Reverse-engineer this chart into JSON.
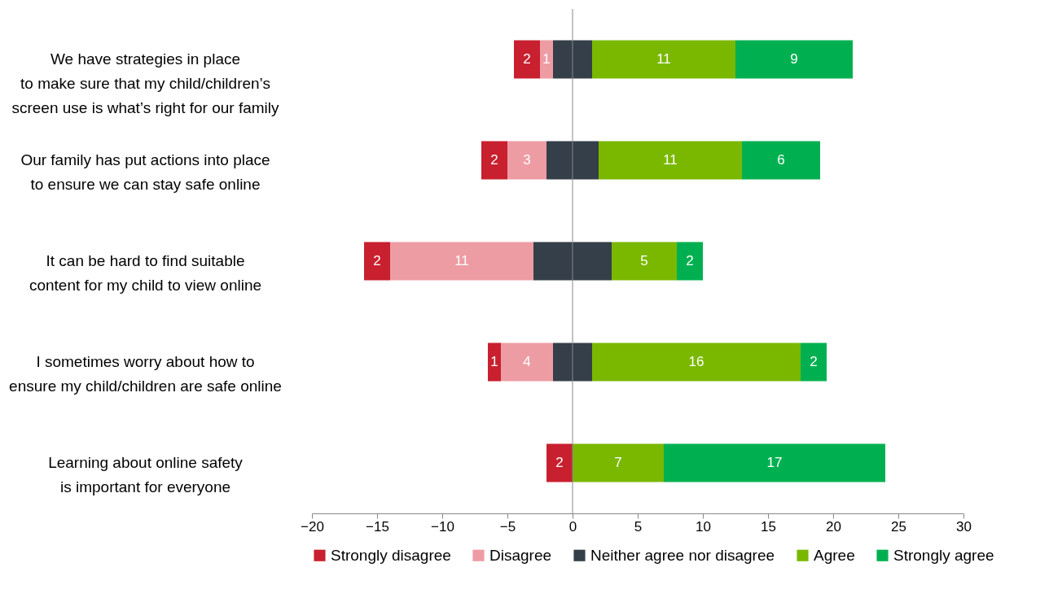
{
  "chart_data": {
    "type": "bar",
    "orientation": "horizontal",
    "categories": [
      "We have strategies in place\nto make sure that my child/children’s\nscreen use is what’s right for our family",
      "Our family has put actions into place\nto ensure we can stay safe online",
      "It can be hard to find suitable\ncontent for my child to view online",
      "I sometimes worry about how to\nensure my child/children are safe online",
      "Learning about online safety\nis important for everyone"
    ],
    "series": [
      {
        "name": "Strongly disagree",
        "color": "#c8202f",
        "values": [
          2,
          2,
          2,
          1,
          2
        ],
        "base": [
          -4.5,
          -7,
          -16,
          -6.5,
          -2
        ],
        "value_labels": [
          "2",
          "2",
          "2",
          "1",
          "2"
        ]
      },
      {
        "name": "Disagree",
        "color": "#ee9ca4",
        "values": [
          1,
          3,
          11,
          4,
          null
        ],
        "base": [
          -2.5,
          -5,
          -14,
          -5.5,
          null
        ],
        "value_labels": [
          "1",
          "3",
          "11",
          "4",
          null
        ]
      },
      {
        "name": "Neither agree nor disagree",
        "color": "#353f49",
        "values": [
          3,
          4,
          6,
          3,
          null
        ],
        "base": [
          -1.5,
          -2,
          -3,
          -1.5,
          null
        ],
        "value_labels": [
          null,
          null,
          null,
          null,
          null
        ]
      },
      {
        "name": "Agree",
        "color": "#7ab800",
        "values": [
          11,
          11,
          5,
          16,
          7
        ],
        "base": [
          1.5,
          2,
          3,
          1.5,
          0
        ],
        "value_labels": [
          "11",
          "11",
          "5",
          "16",
          "7"
        ]
      },
      {
        "name": "Strongly agree",
        "color": "#00b050",
        "values": [
          9,
          6,
          2,
          2,
          17
        ],
        "base": [
          12.5,
          13,
          8,
          17.5,
          7
        ],
        "value_labels": [
          "9",
          "6",
          "2",
          "2",
          "17"
        ]
      }
    ],
    "xlim": [
      -20,
      30
    ],
    "xticks": [
      -20,
      -15,
      -10,
      -5,
      0,
      5,
      10,
      15,
      20,
      25,
      30
    ],
    "legend": "bottom"
  }
}
